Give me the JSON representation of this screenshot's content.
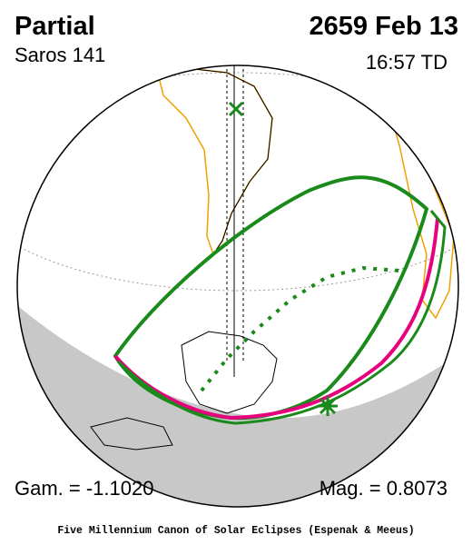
{
  "header": {
    "title": "Partial",
    "saros": "Saros 141",
    "date": "2659 Feb 13",
    "time": "16:57 TD"
  },
  "footer": {
    "gamma": "Gam. = -1.1020",
    "magnitude": "Mag. = 0.8073",
    "credit": "Five Millennium Canon of Solar Eclipses (Espenak & Meeus)"
  }
}
